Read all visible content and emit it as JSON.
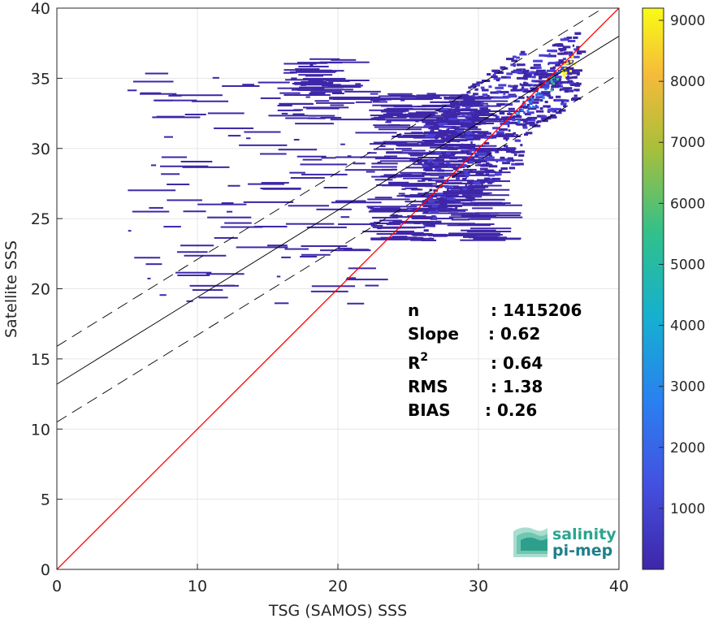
{
  "chart_data": {
    "type": "heatmap",
    "title": "",
    "xlabel": "TSG (SAMOS) SSS",
    "ylabel": "Satellite SSS",
    "xlim": [
      0,
      40
    ],
    "ylim": [
      0,
      40
    ],
    "xticks": [
      "0",
      "10",
      "20",
      "30",
      "40"
    ],
    "yticks": [
      "0",
      "5",
      "10",
      "15",
      "20",
      "25",
      "30",
      "35",
      "40"
    ],
    "grid": true,
    "colormap": "parula",
    "colorbar": {
      "range": [
        0,
        9200
      ],
      "ticks": [
        "1000",
        "2000",
        "3000",
        "4000",
        "5000",
        "6000",
        "7000",
        "8000",
        "9000"
      ]
    },
    "lines": {
      "identity": {
        "slope": 1,
        "intercept": 0,
        "color": "#ff0000"
      },
      "regression": {
        "slope": 0.62,
        "intercept": 13.2,
        "color": "#000000"
      },
      "upper_bound": {
        "slope": 0.62,
        "intercept": 15.9,
        "style": "dashed"
      },
      "lower_bound": {
        "slope": 0.62,
        "intercept": 10.5,
        "style": "dashed"
      }
    },
    "density_regions": [
      {
        "x": [
          30,
          37
        ],
        "y": [
          24,
          37
        ],
        "level": "high"
      },
      {
        "x": [
          22,
          30
        ],
        "y": [
          24,
          33
        ],
        "level": "low"
      },
      {
        "x": [
          16,
          18
        ],
        "y": [
          32,
          37
        ],
        "level": "low"
      }
    ],
    "stats": [
      {
        "label": "n",
        "value": ": 1415206"
      },
      {
        "label": "Slope",
        "value": ": 0.62"
      },
      {
        "label": "R",
        "sup": "2",
        "value": ": 0.64"
      },
      {
        "label": "RMS",
        "value": ": 1.38"
      },
      {
        "label": "BIAS",
        "value": ": 0.26"
      }
    ]
  },
  "logo": {
    "line1": "salinity",
    "line2": "pi-mep"
  },
  "colors": {
    "identity": "#ff0000",
    "regression": "#000000",
    "cloud": "#3e26a8"
  }
}
